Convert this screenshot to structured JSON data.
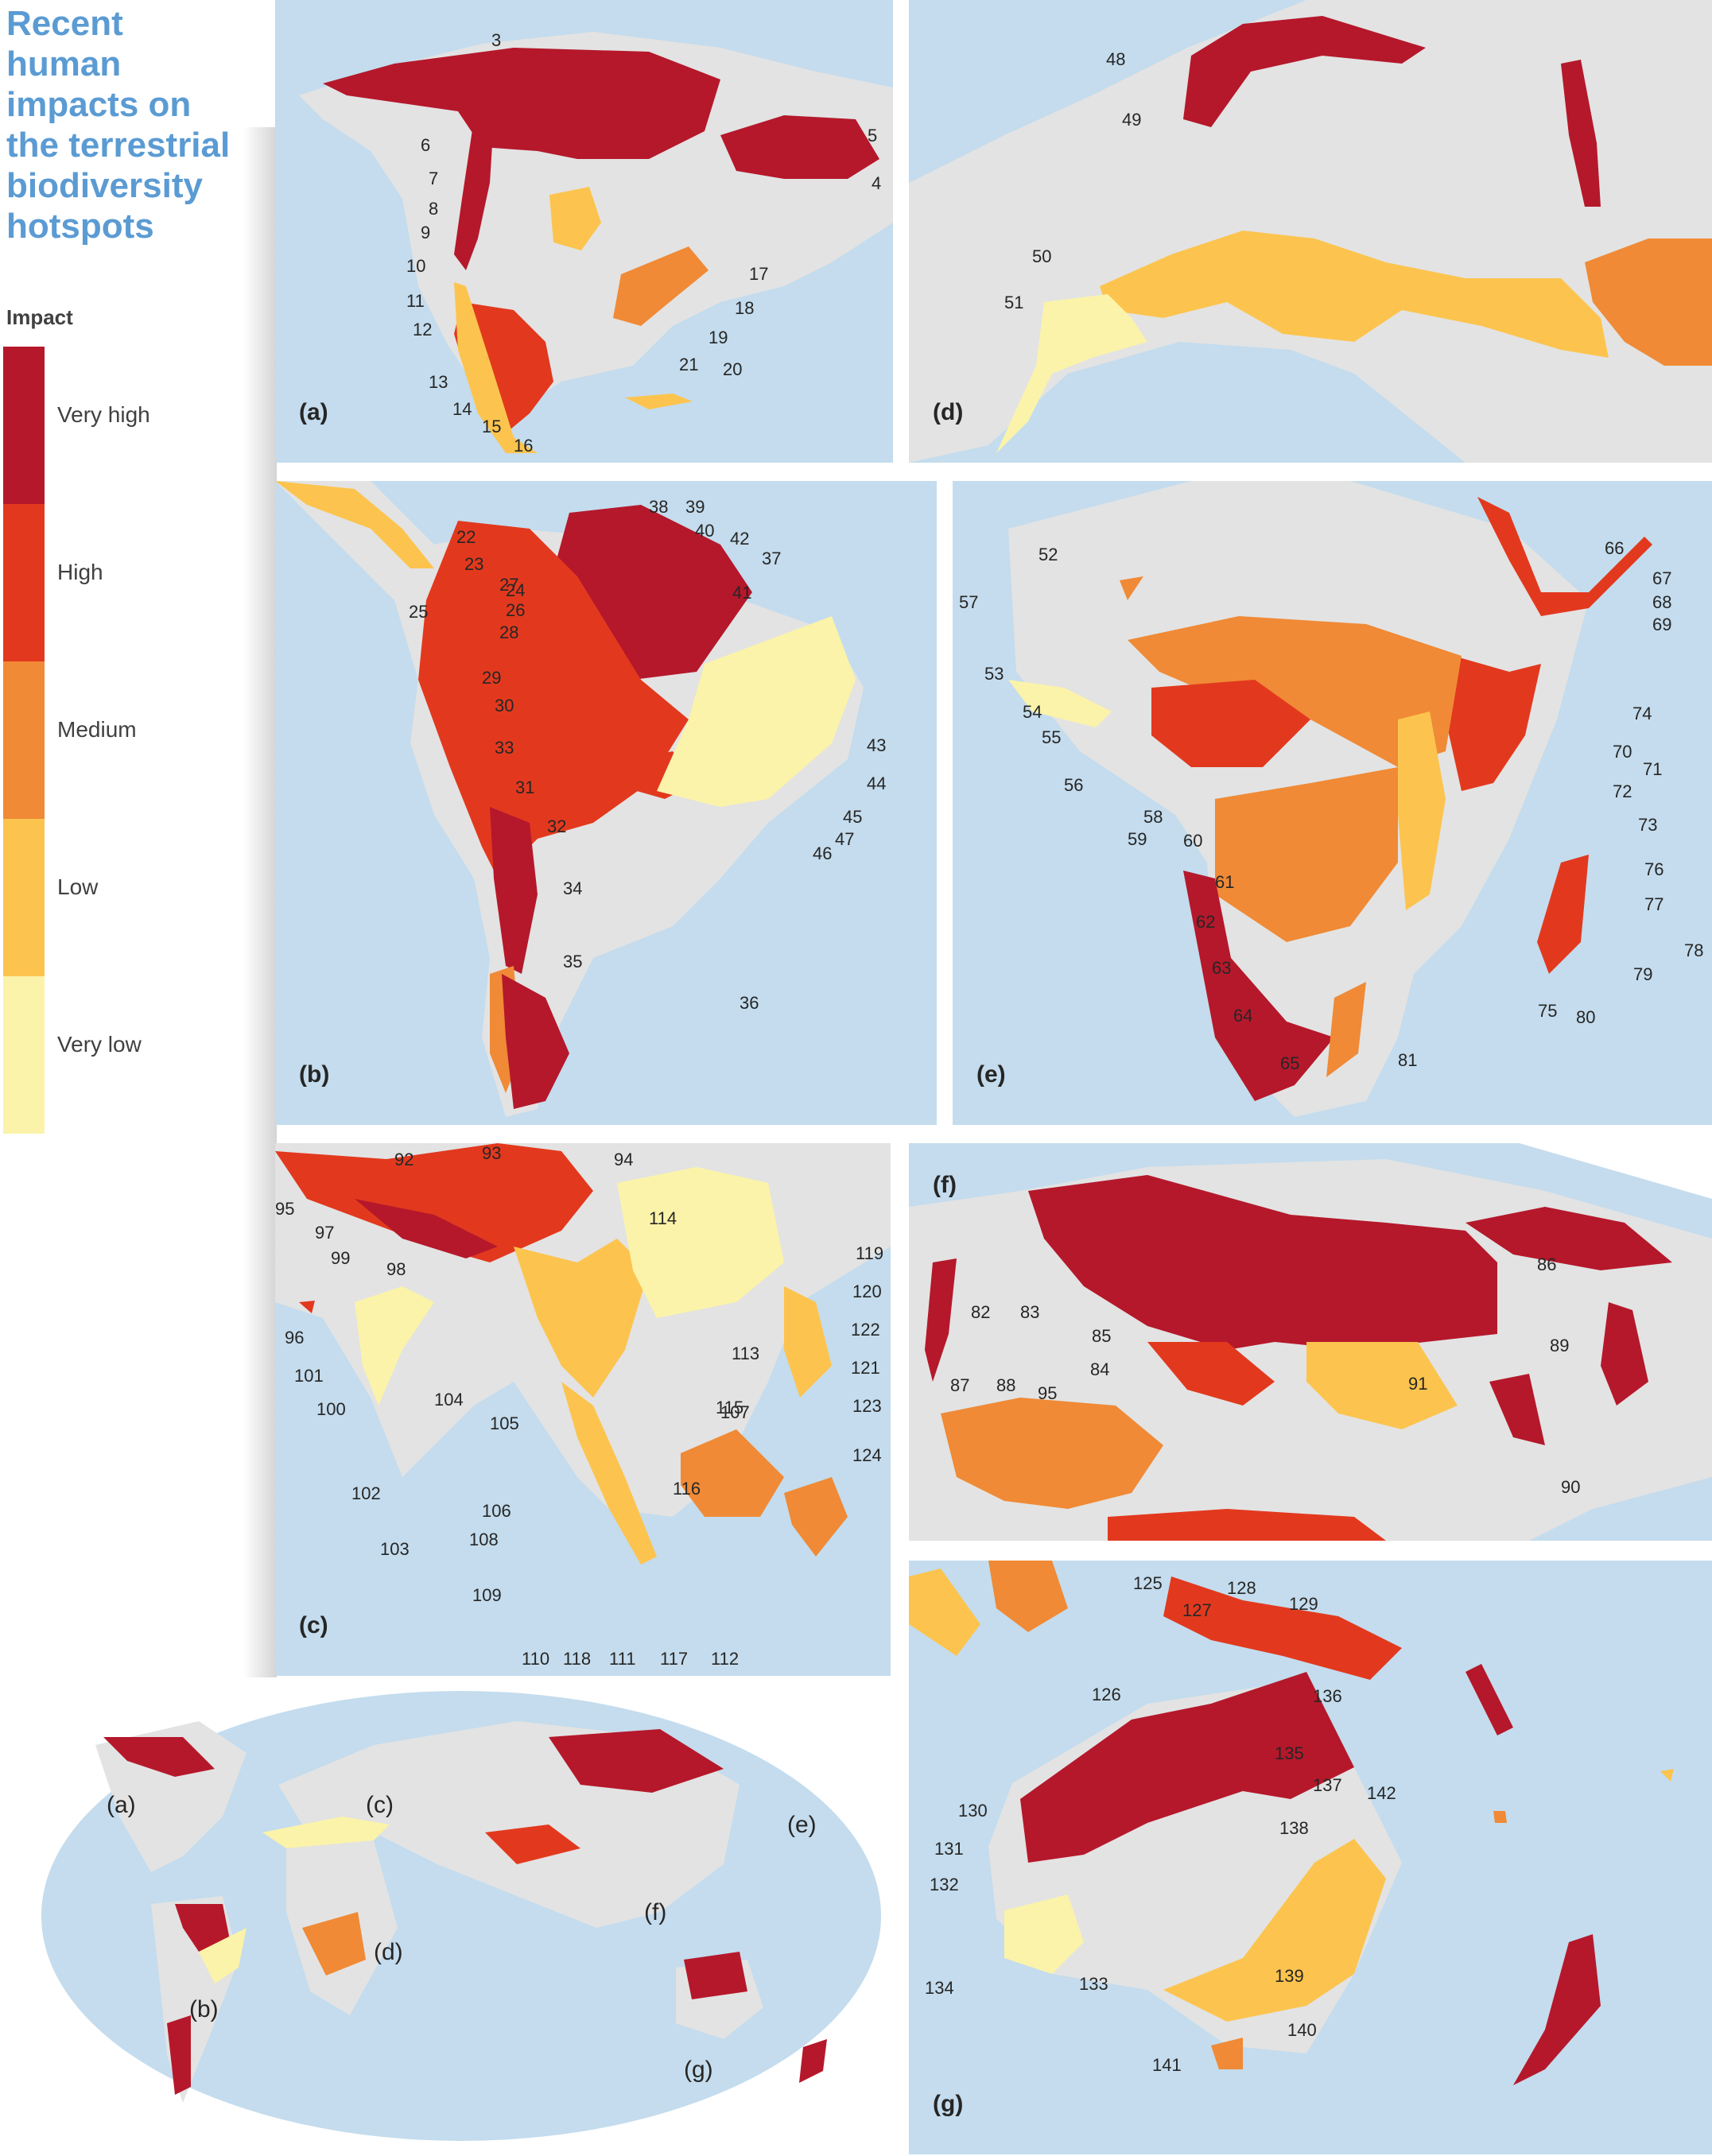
{
  "title": "Recent human impacts on the terrestrial biodiversity hotspots",
  "legend": {
    "heading": "Impact",
    "levels": [
      {
        "label": "Very high",
        "color": "#b5182b"
      },
      {
        "label": "High",
        "color": "#e2391e"
      },
      {
        "label": "Medium",
        "color": "#f08a36"
      },
      {
        "label": "Low",
        "color": "#fcc44e"
      },
      {
        "label": "Very low",
        "color": "#fbf3a9"
      }
    ]
  },
  "colors": {
    "ocean": "#c4dced",
    "land": "#e3e3e3",
    "shadow": "#d9d9d9",
    "title": "#5b9bd3"
  },
  "panels": {
    "a": {
      "letter": "(a)",
      "numbers": [
        "3",
        "4",
        "5",
        "6",
        "7",
        "8",
        "9",
        "10",
        "11",
        "12",
        "13",
        "14",
        "15",
        "16",
        "17",
        "18",
        "19",
        "20",
        "21"
      ]
    },
    "b": {
      "letter": "(b)",
      "numbers": [
        "22",
        "23",
        "24",
        "25",
        "26",
        "27",
        "28",
        "29",
        "30",
        "31",
        "32",
        "33",
        "34",
        "35",
        "36",
        "37",
        "38",
        "39",
        "40",
        "41",
        "42",
        "43",
        "44",
        "45",
        "46",
        "47"
      ]
    },
    "c": {
      "letter": "(c)",
      "numbers": [
        "92",
        "93",
        "94",
        "95",
        "96",
        "97",
        "98",
        "99",
        "100",
        "101",
        "102",
        "103",
        "104",
        "105",
        "106",
        "107",
        "108",
        "109",
        "110",
        "111",
        "112",
        "113",
        "114",
        "115",
        "116",
        "117",
        "118",
        "119",
        "120",
        "121",
        "122",
        "123",
        "124"
      ]
    },
    "d": {
      "letter": "(d)",
      "numbers": [
        "48",
        "49",
        "50",
        "51"
      ]
    },
    "e": {
      "letter": "(e)",
      "numbers": [
        "52",
        "53",
        "54",
        "55",
        "56",
        "57",
        "58",
        "59",
        "60",
        "61",
        "62",
        "63",
        "64",
        "65",
        "66",
        "67",
        "68",
        "69",
        "70",
        "71",
        "72",
        "73",
        "74",
        "75",
        "76",
        "77",
        "78",
        "79",
        "80",
        "81"
      ]
    },
    "f": {
      "letter": "(f)",
      "numbers": [
        "82",
        "83",
        "84",
        "85",
        "86",
        "87",
        "88",
        "89",
        "90",
        "91",
        "95"
      ]
    },
    "g": {
      "letter": "(g)",
      "numbers": [
        "125",
        "126",
        "127",
        "128",
        "129",
        "130",
        "131",
        "132",
        "133",
        "134",
        "135",
        "136",
        "137",
        "138",
        "139",
        "140",
        "141",
        "142"
      ]
    }
  },
  "world_labels": [
    "(a)",
    "(b)",
    "(c)",
    "(d)",
    "(e)",
    "(f)",
    "(g)"
  ]
}
